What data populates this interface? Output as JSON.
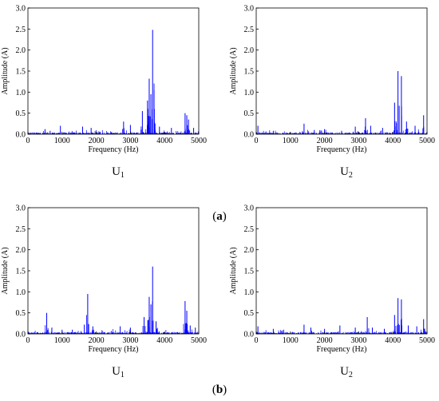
{
  "chart_data": [
    {
      "type": "bar",
      "group": "a",
      "caption": "U",
      "caption_sub": "1",
      "xlabel": "Frequency (Hz)",
      "ylabel": "Amplitude (A)",
      "xlim": [
        0,
        5000
      ],
      "ylim": [
        0,
        3.0
      ],
      "xticks": [
        "0",
        "1000",
        "2000",
        "3000",
        "4000",
        "5000"
      ],
      "yticks": [
        "0.0",
        "0.5",
        "1.0",
        "1.5",
        "2.0",
        "2.5",
        "3.0"
      ],
      "grid": false,
      "color": "#0000ff",
      "peaks": [
        {
          "x": 500,
          "y": 0.12
        },
        {
          "x": 650,
          "y": 0.08
        },
        {
          "x": 950,
          "y": 0.2
        },
        {
          "x": 1200,
          "y": 0.06
        },
        {
          "x": 1600,
          "y": 0.18
        },
        {
          "x": 1850,
          "y": 0.15
        },
        {
          "x": 2100,
          "y": 0.06
        },
        {
          "x": 2450,
          "y": 0.05
        },
        {
          "x": 2800,
          "y": 0.3
        },
        {
          "x": 3000,
          "y": 0.22
        },
        {
          "x": 3350,
          "y": 0.55
        },
        {
          "x": 3500,
          "y": 0.8
        },
        {
          "x": 3550,
          "y": 1.32
        },
        {
          "x": 3600,
          "y": 0.95
        },
        {
          "x": 3650,
          "y": 2.48
        },
        {
          "x": 3700,
          "y": 0.6
        },
        {
          "x": 3850,
          "y": 0.18
        },
        {
          "x": 4200,
          "y": 0.15
        },
        {
          "x": 4600,
          "y": 0.5
        },
        {
          "x": 4650,
          "y": 0.45
        },
        {
          "x": 4700,
          "y": 0.35
        },
        {
          "x": 4850,
          "y": 0.15
        }
      ]
    },
    {
      "type": "bar",
      "group": "a",
      "caption": "U",
      "caption_sub": "2",
      "xlabel": "Frequency (Hz)",
      "ylabel": "Amplitude (A)",
      "xlim": [
        0,
        5000
      ],
      "ylim": [
        0,
        3.0
      ],
      "xticks": [
        "0",
        "1000",
        "2000",
        "3000",
        "4000",
        "5000"
      ],
      "yticks": [
        "0.0",
        "0.5",
        "1.0",
        "1.5",
        "2.0",
        "2.5",
        "3.0"
      ],
      "grid": false,
      "color": "#0000ff",
      "peaks": [
        {
          "x": 50,
          "y": 0.2
        },
        {
          "x": 500,
          "y": 0.08
        },
        {
          "x": 1400,
          "y": 0.25
        },
        {
          "x": 1700,
          "y": 0.1
        },
        {
          "x": 2000,
          "y": 0.12
        },
        {
          "x": 2500,
          "y": 0.08
        },
        {
          "x": 2900,
          "y": 0.18
        },
        {
          "x": 3200,
          "y": 0.38
        },
        {
          "x": 3350,
          "y": 0.2
        },
        {
          "x": 3700,
          "y": 0.15
        },
        {
          "x": 4050,
          "y": 0.75
        },
        {
          "x": 4150,
          "y": 1.5
        },
        {
          "x": 4250,
          "y": 1.38
        },
        {
          "x": 4400,
          "y": 0.3
        },
        {
          "x": 4650,
          "y": 0.2
        },
        {
          "x": 4900,
          "y": 0.45
        }
      ]
    },
    {
      "type": "bar",
      "group": "b",
      "caption": "U",
      "caption_sub": "1",
      "xlabel": "Frequency (Hz)",
      "ylabel": "Amplitude (A)",
      "xlim": [
        0,
        5000
      ],
      "ylim": [
        0,
        3.0
      ],
      "xticks": [
        "0",
        "1000",
        "2000",
        "3000",
        "4000",
        "5000"
      ],
      "yticks": [
        "0.0",
        "0.5",
        "1.0",
        "1.5",
        "2.0",
        "2.5",
        "3.0"
      ],
      "grid": false,
      "color": "#0000ff",
      "peaks": [
        {
          "x": 550,
          "y": 0.5
        },
        {
          "x": 700,
          "y": 0.15
        },
        {
          "x": 1000,
          "y": 0.1
        },
        {
          "x": 1300,
          "y": 0.1
        },
        {
          "x": 1650,
          "y": 0.22
        },
        {
          "x": 1750,
          "y": 0.95
        },
        {
          "x": 1900,
          "y": 0.18
        },
        {
          "x": 2700,
          "y": 0.18
        },
        {
          "x": 3000,
          "y": 0.15
        },
        {
          "x": 3400,
          "y": 0.4
        },
        {
          "x": 3550,
          "y": 0.88
        },
        {
          "x": 3600,
          "y": 0.7
        },
        {
          "x": 3650,
          "y": 1.6
        },
        {
          "x": 3750,
          "y": 0.3
        },
        {
          "x": 4600,
          "y": 0.78
        },
        {
          "x": 4650,
          "y": 0.55
        },
        {
          "x": 4750,
          "y": 0.2
        },
        {
          "x": 4900,
          "y": 0.15
        }
      ]
    },
    {
      "type": "bar",
      "group": "b",
      "caption": "U",
      "caption_sub": "2",
      "xlabel": "Frequency (Hz)",
      "ylabel": "Amplitude (A)",
      "xlim": [
        0,
        5000
      ],
      "ylim": [
        0,
        3.0
      ],
      "xticks": [
        "0",
        "1000",
        "2000",
        "3000",
        "4000",
        "5000"
      ],
      "yticks": [
        "0.0",
        "0.5",
        "1.0",
        "1.5",
        "2.0",
        "2.5",
        "3.0"
      ],
      "grid": false,
      "color": "#0000ff",
      "peaks": [
        {
          "x": 50,
          "y": 0.18
        },
        {
          "x": 500,
          "y": 0.12
        },
        {
          "x": 800,
          "y": 0.1
        },
        {
          "x": 1400,
          "y": 0.22
        },
        {
          "x": 1600,
          "y": 0.15
        },
        {
          "x": 2000,
          "y": 0.12
        },
        {
          "x": 2450,
          "y": 0.2
        },
        {
          "x": 2900,
          "y": 0.15
        },
        {
          "x": 3250,
          "y": 0.4
        },
        {
          "x": 3400,
          "y": 0.15
        },
        {
          "x": 3750,
          "y": 0.12
        },
        {
          "x": 4050,
          "y": 0.45
        },
        {
          "x": 4150,
          "y": 0.85
        },
        {
          "x": 4250,
          "y": 0.82
        },
        {
          "x": 4450,
          "y": 0.2
        },
        {
          "x": 4700,
          "y": 0.18
        },
        {
          "x": 4900,
          "y": 0.35
        }
      ]
    }
  ],
  "labels": {
    "a": "(a)",
    "b": "(b)"
  }
}
